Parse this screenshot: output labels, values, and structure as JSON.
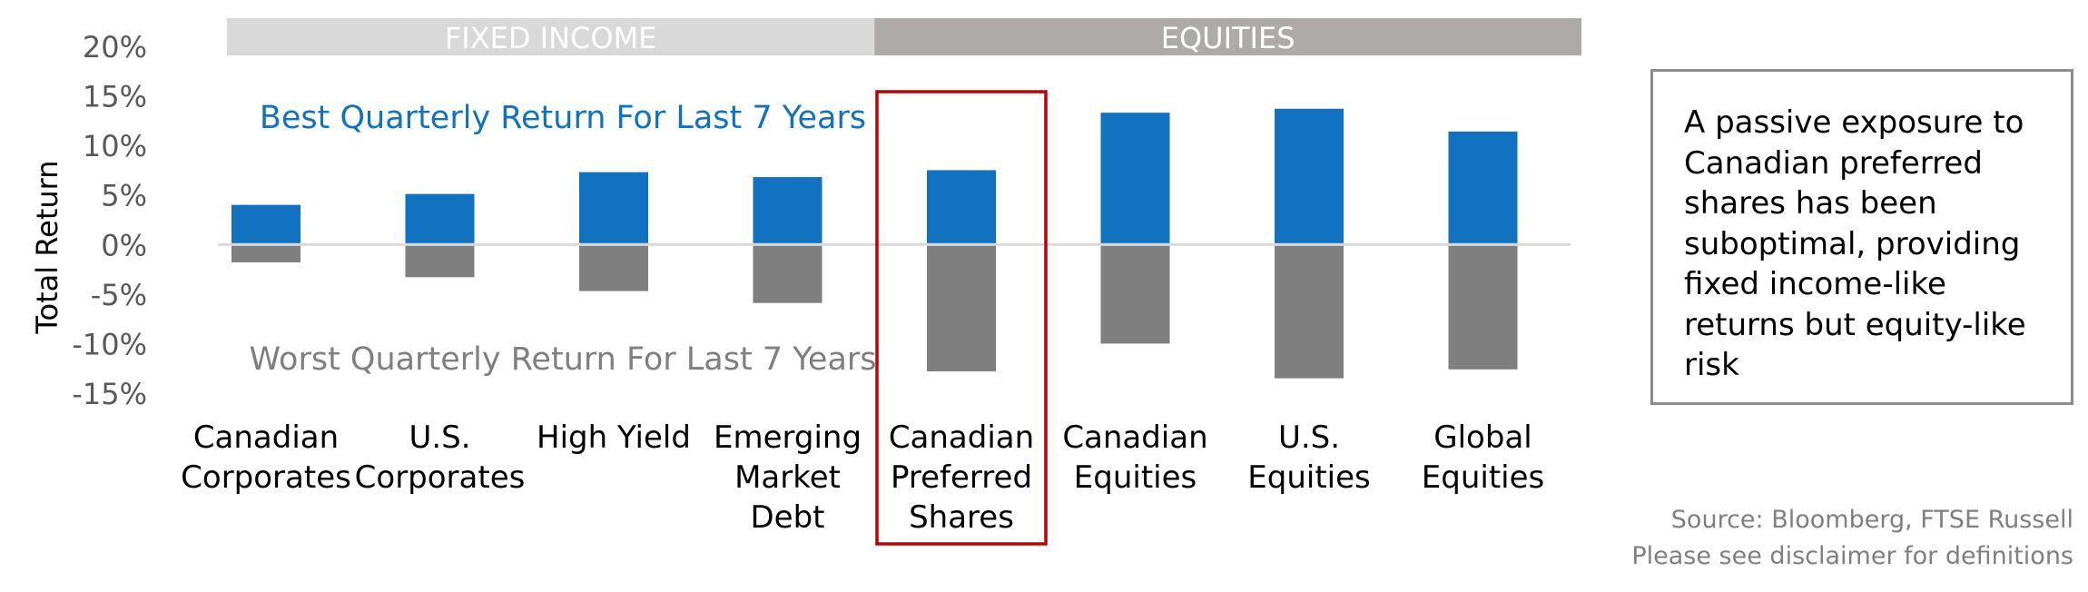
{
  "chart_data": {
    "type": "bar",
    "categories": [
      [
        "Canadian",
        "Corporates"
      ],
      [
        "U.S.",
        "Corporates"
      ],
      [
        "High Yield"
      ],
      [
        "Emerging",
        "Market",
        "Debt"
      ],
      [
        "Canadian",
        "Preferred",
        "Shares"
      ],
      [
        "Canadian",
        "Equities"
      ],
      [
        "U.S.",
        "Equities"
      ],
      [
        "Global",
        "Equities"
      ]
    ],
    "series": [
      {
        "name": "Best Quarterly Return For Last 7 Years",
        "values": [
          4.0,
          5.1,
          7.3,
          6.8,
          7.5,
          13.3,
          13.7,
          11.4
        ],
        "color": "#1272c2"
      },
      {
        "name": "Worst Quarterly Return For Last 7 Years",
        "values": [
          -1.8,
          -3.3,
          -4.7,
          -5.9,
          -12.8,
          -10.0,
          -13.5,
          -12.6
        ],
        "color": "#7f7f7f"
      }
    ],
    "groups": [
      {
        "label": "FIXED INCOME",
        "from": 0,
        "to": 3,
        "color": "#d9d9d9"
      },
      {
        "label": "EQUITIES",
        "from": 4,
        "to": 7,
        "color": "#aeaaaa"
      }
    ],
    "highlighted_category": 4,
    "highlight_color": "#c00000",
    "ylabel": "Total Return",
    "ylim": [
      -15,
      20
    ],
    "yticks": [
      20,
      15,
      10,
      5,
      0,
      -5,
      -10,
      -15
    ],
    "ytick_labels": [
      "20%",
      "15%",
      "10%",
      "5%",
      "0%",
      "-5%",
      "-10%",
      "-15%"
    ],
    "grid": false,
    "legend": "inline series labels"
  },
  "callout": {
    "lines": [
      "A passive exposure to",
      "Canadian preferred",
      "shares has been",
      "suboptimal, providing",
      "fixed income-like",
      "returns but equity-like",
      "risk"
    ]
  },
  "source": {
    "line1": "Source: Bloomberg, FTSE Russell",
    "line2": "Please see disclaimer for definitions"
  }
}
